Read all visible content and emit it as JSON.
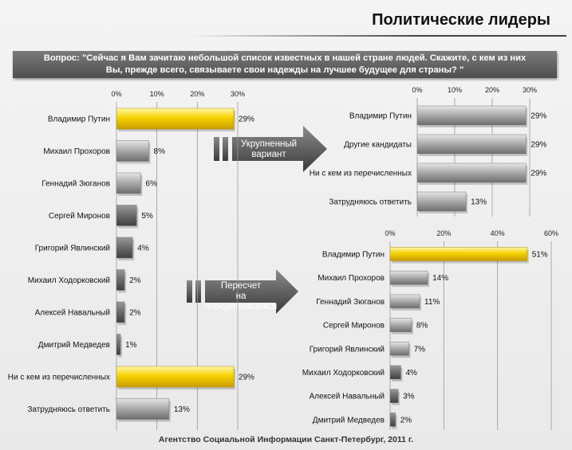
{
  "title": "Политические лидеры",
  "question": {
    "line1": "Вопрос: \"Сейчас я Вам зачитаю небольшой список известных в нашей стране людей. Скажите, с кем из них",
    "line2": "Вы, прежде всего, связываете свои надежды на лучшее будущее для страны? \""
  },
  "footer": "Агентство Социальной Информации Санкт-Петербург, 2011 г.",
  "arrows": {
    "enlarged": [
      "Укрупненный",
      "вариант"
    ],
    "recalc": [
      "Пересчет",
      "на определившихся"
    ]
  },
  "colors": {
    "highlight": "#f2c400",
    "bar": "#9a9a9a",
    "barDark": "#6f6f6f"
  },
  "chart_data": [
    {
      "type": "bar",
      "orientation": "horizontal",
      "categories": [
        "Владимир Путин",
        "Михаил Прохоров",
        "Геннадий Зюганов",
        "Сергей Миронов",
        "Григорий Явлинский",
        "Михаил Ходорковский",
        "Алексей Навальный",
        "Дмитрий Медведев",
        "Ни с кем из перечисленных",
        "Затрудняюсь ответить"
      ],
      "values": [
        29,
        8,
        6,
        5,
        4,
        2,
        2,
        1,
        29,
        13
      ],
      "highlight": [
        0,
        8
      ],
      "xlim": [
        0,
        30
      ],
      "ticks": [
        "0%",
        "10%",
        "20%",
        "30%"
      ],
      "grid": true
    },
    {
      "type": "bar",
      "orientation": "horizontal",
      "categories": [
        "Владимир Путин",
        "Другие кандидаты",
        "Ни с кем из перечисленных",
        "Затрудняюсь ответить"
      ],
      "values": [
        29,
        29,
        29,
        13
      ],
      "highlight": [],
      "xlim": [
        0,
        30
      ],
      "ticks": [
        "0%",
        "10%",
        "20%",
        "30%"
      ],
      "grid": true
    },
    {
      "type": "bar",
      "orientation": "horizontal",
      "categories": [
        "Владимир Путин",
        "Михаил Прохоров",
        "Геннадий Зюганов",
        "Сергей Миронов",
        "Григорий Явлинский",
        "Михаил Ходорковский",
        "Алексей Навальный",
        "Дмитрий Медведев"
      ],
      "values": [
        51,
        14,
        11,
        8,
        7,
        4,
        3,
        2
      ],
      "highlight": [
        0
      ],
      "xlim": [
        0,
        60
      ],
      "ticks": [
        "0%",
        "20%",
        "40%",
        "60%"
      ],
      "grid": true
    }
  ]
}
